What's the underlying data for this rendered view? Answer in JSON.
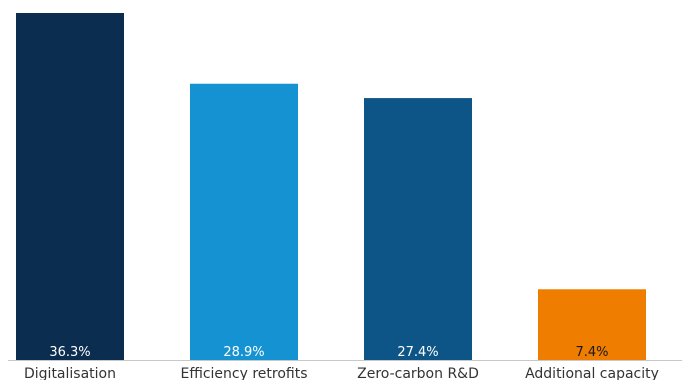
{
  "chart_data": {
    "type": "bar",
    "title": "",
    "xlabel": "",
    "ylabel": "",
    "ylim": [
      0,
      36.3
    ],
    "grid": false,
    "categories": [
      "Digitalisation",
      "Efficiency retrofits",
      "Zero-carbon R&D",
      "Additional capacity"
    ],
    "values": [
      36.3,
      28.9,
      27.4,
      7.4
    ],
    "data_labels": [
      "36.3%",
      "28.9%",
      "27.4%",
      "7.4%"
    ],
    "colors": [
      "#0b2d4f",
      "#1592d1",
      "#0d5586",
      "#ef7d00"
    ],
    "label_colors": [
      "#ffffff",
      "#ffffff",
      "#ffffff",
      "#1a1a1a"
    ],
    "axis_color": "#c8c8c8",
    "category_label_color": "#333333"
  }
}
